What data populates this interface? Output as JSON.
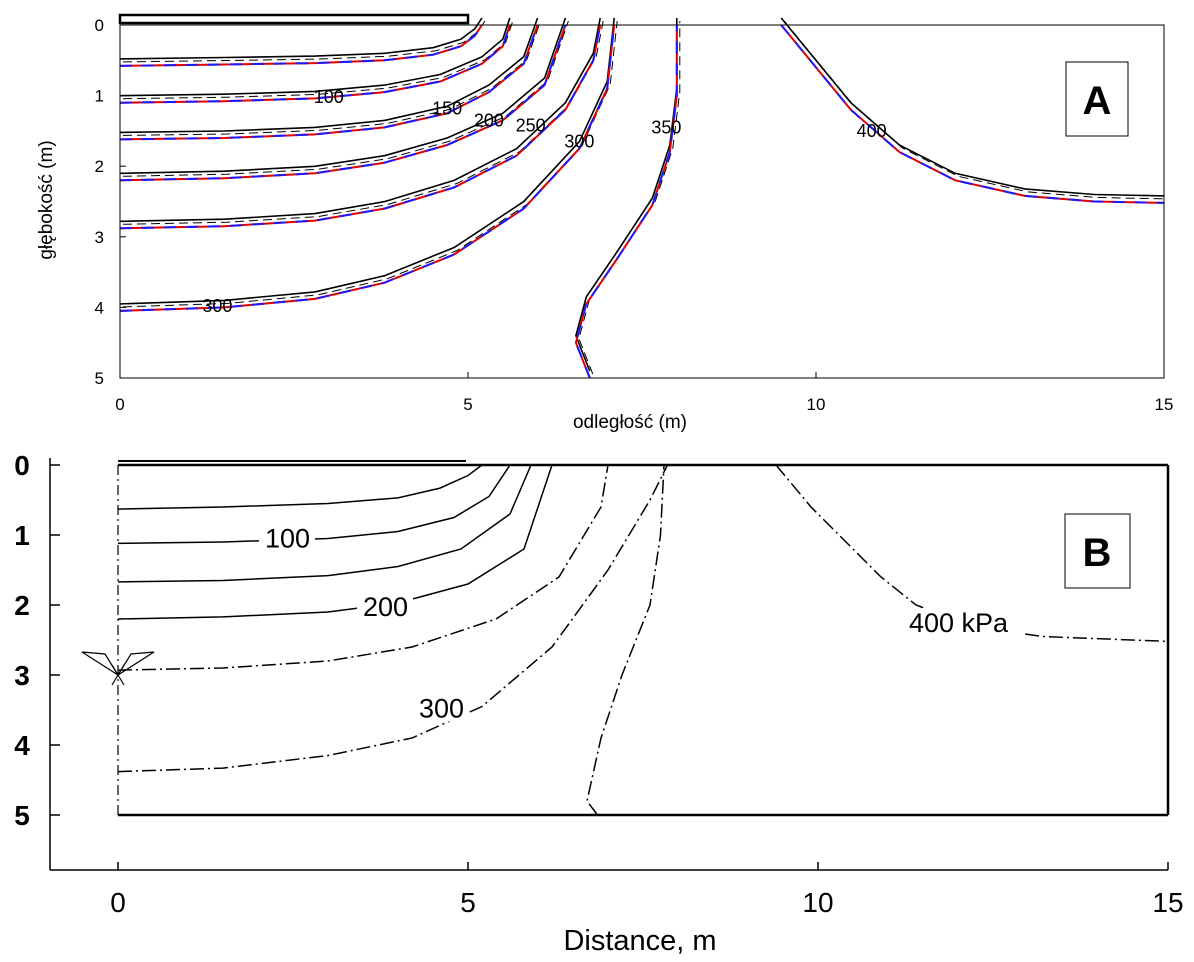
{
  "chart_data": [
    {
      "panel": "A",
      "type": "contour",
      "panel_label": "A",
      "xlabel": "odległość (m)",
      "ylabel": "głębokość (m)",
      "xlim": [
        0,
        15
      ],
      "ylim": [
        0,
        5
      ],
      "y_inverted": true,
      "x_ticks": [
        "0",
        "5",
        "10",
        "15"
      ],
      "y_ticks": [
        "0",
        "1",
        "2",
        "3",
        "4",
        "5"
      ],
      "footing": {
        "x_from": 0,
        "x_to": 5
      },
      "colors": {
        "solid": "#000000",
        "dashed": "#000000",
        "red": "#e00000",
        "blue": "#1a1aff"
      },
      "contours": [
        {
          "label": "",
          "points": [
            [
              0,
              0.58
            ],
            [
              1.5,
              0.56
            ],
            [
              2.8,
              0.54
            ],
            [
              3.8,
              0.5
            ],
            [
              4.5,
              0.42
            ],
            [
              4.9,
              0.3
            ],
            [
              5.1,
              0.15
            ],
            [
              5.2,
              0
            ]
          ]
        },
        {
          "label": "100",
          "label_at": [
            3.0,
            1.02
          ],
          "points": [
            [
              0,
              1.1
            ],
            [
              1.5,
              1.08
            ],
            [
              2.8,
              1.04
            ],
            [
              3.8,
              0.95
            ],
            [
              4.6,
              0.8
            ],
            [
              5.2,
              0.55
            ],
            [
              5.5,
              0.3
            ],
            [
              5.6,
              0
            ]
          ]
        },
        {
          "label": "150",
          "label_at": [
            4.7,
            1.18
          ],
          "points": [
            [
              0,
              1.62
            ],
            [
              1.5,
              1.6
            ],
            [
              2.8,
              1.55
            ],
            [
              3.8,
              1.45
            ],
            [
              4.7,
              1.25
            ],
            [
              5.3,
              0.95
            ],
            [
              5.8,
              0.55
            ],
            [
              6.0,
              0
            ]
          ]
        },
        {
          "label": "200",
          "label_at": [
            5.3,
            1.35
          ],
          "points": [
            [
              0,
              2.2
            ],
            [
              1.5,
              2.17
            ],
            [
              2.8,
              2.1
            ],
            [
              3.8,
              1.95
            ],
            [
              4.7,
              1.7
            ],
            [
              5.5,
              1.35
            ],
            [
              6.1,
              0.85
            ],
            [
              6.4,
              0
            ]
          ]
        },
        {
          "label": "250",
          "label_at": [
            5.9,
            1.42
          ],
          "points": [
            [
              0,
              2.88
            ],
            [
              1.5,
              2.85
            ],
            [
              2.8,
              2.77
            ],
            [
              3.8,
              2.6
            ],
            [
              4.8,
              2.3
            ],
            [
              5.7,
              1.85
            ],
            [
              6.4,
              1.2
            ],
            [
              6.8,
              0.5
            ],
            [
              6.9,
              0
            ]
          ]
        },
        {
          "label": "300",
          "label_at": [
            1.4,
            3.98
          ],
          "points": [
            [
              0,
              4.05
            ],
            [
              1.5,
              4.0
            ],
            [
              2.8,
              3.88
            ],
            [
              3.8,
              3.65
            ],
            [
              4.8,
              3.25
            ],
            [
              5.8,
              2.6
            ],
            [
              6.6,
              1.75
            ],
            [
              7.0,
              0.9
            ],
            [
              7.1,
              0
            ]
          ]
        },
        {
          "label": "300",
          "label_at": [
            6.6,
            1.65
          ],
          "points": []
        },
        {
          "label": "350",
          "label_at": [
            7.85,
            1.45
          ],
          "points": [
            [
              6.75,
              5.0
            ],
            [
              6.55,
              4.5
            ],
            [
              6.7,
              3.95
            ],
            [
              7.15,
              3.3
            ],
            [
              7.65,
              2.55
            ],
            [
              7.9,
              1.8
            ],
            [
              8.0,
              1.0
            ],
            [
              8.0,
              0
            ]
          ]
        },
        {
          "label": "400",
          "label_at": [
            10.8,
            1.5
          ],
          "points": [
            [
              9.5,
              0
            ],
            [
              10.0,
              0.6
            ],
            [
              10.5,
              1.2
            ],
            [
              11.2,
              1.8
            ],
            [
              12.0,
              2.2
            ],
            [
              13.0,
              2.42
            ],
            [
              14.0,
              2.5
            ],
            [
              15.0,
              2.52
            ]
          ]
        }
      ]
    },
    {
      "panel": "B",
      "type": "contour",
      "panel_label": "B",
      "xlabel": "Distance, m",
      "ylabel": "",
      "xlim": [
        0,
        15
      ],
      "ylim": [
        0,
        5
      ],
      "y_inverted": true,
      "x_ticks": [
        "0",
        "5",
        "10",
        "15"
      ],
      "y_ticks": [
        "0",
        "1",
        "2",
        "3",
        "4",
        "5"
      ],
      "contours": [
        {
          "label": "",
          "style": "solid",
          "points": [
            [
              0,
              0.63
            ],
            [
              1.5,
              0.6
            ],
            [
              3,
              0.55
            ],
            [
              4,
              0.47
            ],
            [
              4.6,
              0.33
            ],
            [
              5.0,
              0.15
            ],
            [
              5.2,
              0
            ]
          ]
        },
        {
          "label": "100",
          "style": "solid",
          "label_at": [
            2.1,
            1.12
          ],
          "points": [
            [
              0,
              1.12
            ],
            [
              1.5,
              1.1
            ],
            [
              3.0,
              1.05
            ],
            [
              4.0,
              0.95
            ],
            [
              4.8,
              0.75
            ],
            [
              5.3,
              0.45
            ],
            [
              5.6,
              0
            ]
          ]
        },
        {
          "label": "",
          "style": "solid",
          "points": [
            [
              0,
              1.67
            ],
            [
              1.5,
              1.65
            ],
            [
              3,
              1.58
            ],
            [
              4,
              1.45
            ],
            [
              4.9,
              1.2
            ],
            [
              5.6,
              0.7
            ],
            [
              5.9,
              0
            ]
          ]
        },
        {
          "label": "200",
          "style": "solid",
          "label_at": [
            3.5,
            2.1
          ],
          "points": [
            [
              0,
              2.2
            ],
            [
              1.5,
              2.17
            ],
            [
              3,
              2.1
            ],
            [
              4,
              1.97
            ],
            [
              5,
              1.7
            ],
            [
              5.8,
              1.2
            ],
            [
              6.2,
              0
            ]
          ]
        },
        {
          "label": "",
          "style": "dashdot",
          "points": [
            [
              0,
              2.93
            ],
            [
              1.5,
              2.9
            ],
            [
              3,
              2.8
            ],
            [
              4.2,
              2.6
            ],
            [
              5.4,
              2.2
            ],
            [
              6.3,
              1.6
            ],
            [
              6.9,
              0.6
            ],
            [
              7.0,
              0
            ]
          ]
        },
        {
          "label": "300",
          "style": "dashdot",
          "label_at": [
            4.3,
            3.55
          ],
          "points": [
            [
              0,
              4.38
            ],
            [
              1.5,
              4.33
            ],
            [
              3.0,
              4.15
            ],
            [
              4.2,
              3.9
            ],
            [
              5.2,
              3.45
            ],
            [
              6.2,
              2.6
            ],
            [
              7.0,
              1.5
            ],
            [
              7.6,
              0.5
            ],
            [
              7.85,
              0
            ]
          ]
        },
        {
          "label": "",
          "style": "dashdot",
          "points": [
            [
              6.85,
              5.0
            ],
            [
              6.7,
              4.8
            ],
            [
              6.9,
              3.9
            ],
            [
              7.2,
              3.0
            ],
            [
              7.6,
              2.0
            ],
            [
              7.75,
              1.0
            ],
            [
              7.8,
              0
            ]
          ]
        },
        {
          "label": "400 kPa",
          "style": "dashdot",
          "label_at": [
            11.3,
            2.33
          ],
          "points": [
            [
              9.4,
              0
            ],
            [
              9.9,
              0.6
            ],
            [
              10.4,
              1.1
            ],
            [
              10.9,
              1.6
            ],
            [
              11.4,
              2.0
            ],
            [
              12.2,
              2.3
            ],
            [
              13.2,
              2.45
            ],
            [
              15,
              2.52
            ]
          ]
        }
      ]
    }
  ]
}
